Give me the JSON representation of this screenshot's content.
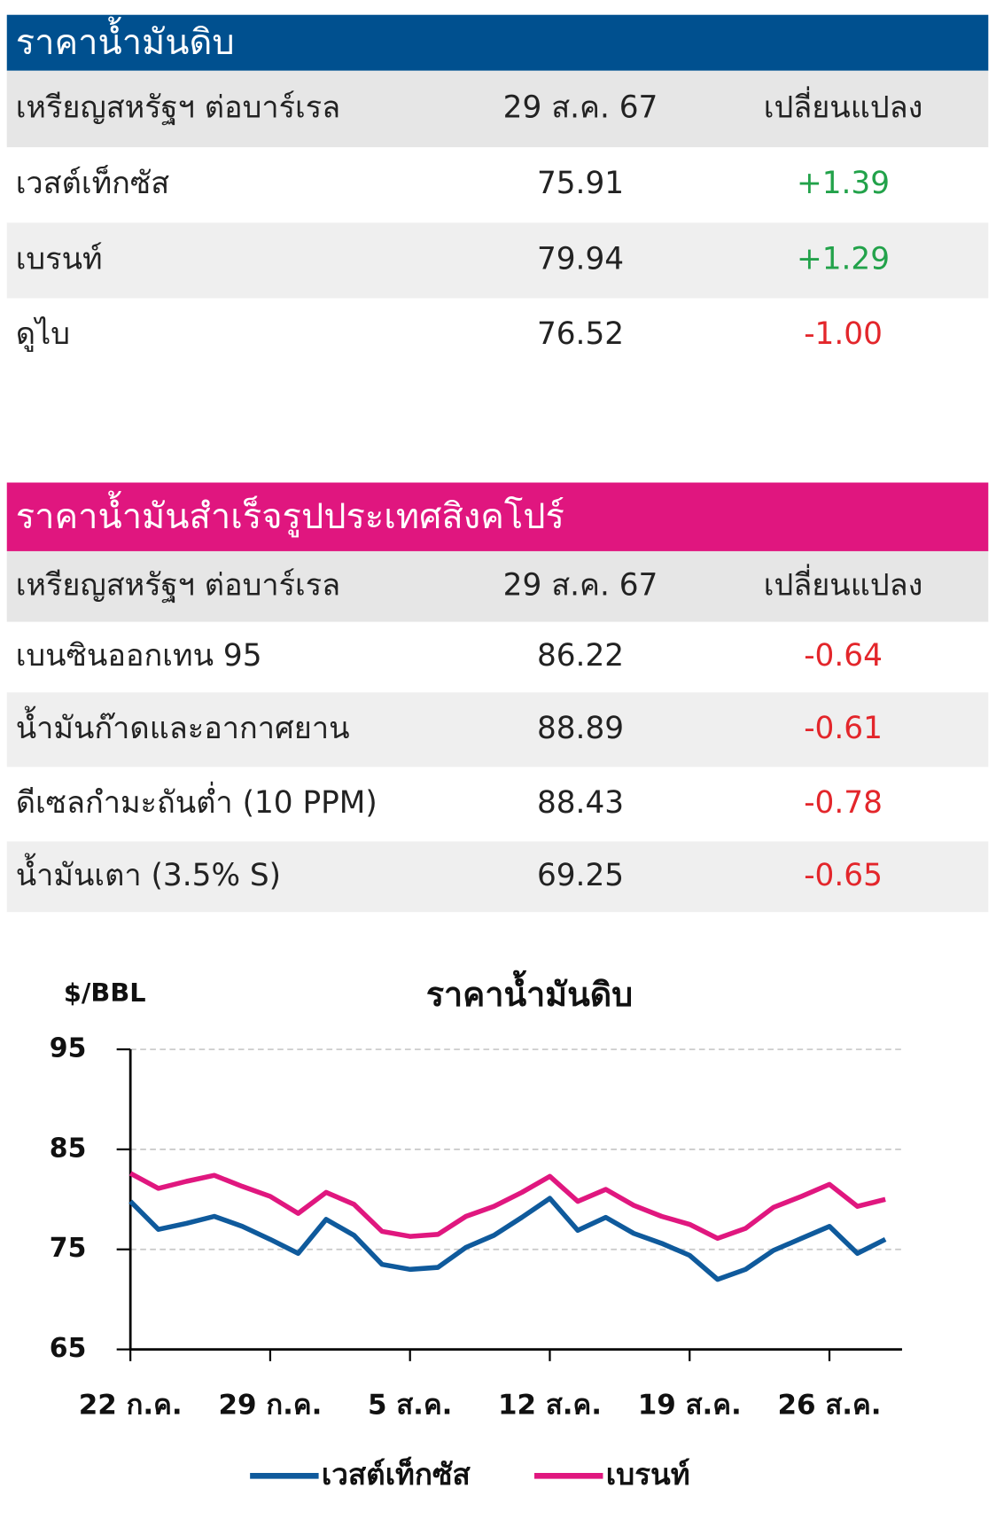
{
  "tables": [
    {
      "title": "ราคาน้ำมันดิบ",
      "header": [
        "เหรียญสหรัฐฯ ต่อบาร์เรล",
        "29 ส.ค. 67",
        "เปลี่ยนแปลง"
      ],
      "rows": [
        [
          "เวสต์เท็กซัส",
          "75.91",
          "+1.39"
        ],
        [
          "เบรนท์",
          "79.94",
          "+1.29"
        ],
        [
          "ดูไบ",
          "76.52",
          "-1.00"
        ]
      ]
    },
    {
      "title": "ราคาน้ำมันสำเร็จรูปประเทศสิงคโปร์",
      "header": [
        "เหรียญสหรัฐฯ ต่อบาร์เรล",
        "29 ส.ค. 67",
        "เปลี่ยนแปลง"
      ],
      "rows": [
        [
          "เบนซินออกเทน 95",
          "86.22",
          "-0.64"
        ],
        [
          "น้ำมันก๊าดและอากาศยาน",
          "88.89",
          "-0.61"
        ],
        [
          "ดีเซลกำมะถันต่ำ (10 PPM)",
          "88.43",
          "-0.78"
        ],
        [
          "น้ำมันเตา (3.5% S)",
          "69.25",
          "-0.65"
        ]
      ]
    }
  ],
  "chart_data": {
    "type": "line",
    "title": "ราคาน้ำมันดิบ",
    "y_label": "$/BBL",
    "categories": [
      "22 ก.ค.",
      null,
      null,
      null,
      null,
      "29 ก.ค.",
      null,
      null,
      null,
      null,
      "5 ส.ค.",
      null,
      null,
      null,
      null,
      "12 ส.ค.",
      null,
      null,
      null,
      null,
      "19 ส.ค.",
      null,
      null,
      null,
      null,
      "26 ส.ค.",
      null,
      null
    ],
    "series": [
      {
        "name": "เวสต์เท็กซัส",
        "color": "#0f5a9c",
        "values": [
          79.8,
          77.0,
          77.6,
          78.3,
          77.3,
          76.0,
          74.6,
          78.0,
          76.4,
          73.5,
          73.0,
          73.2,
          75.2,
          76.4,
          78.2,
          80.1,
          76.9,
          78.2,
          76.6,
          75.6,
          74.4,
          72.0,
          73.0,
          74.9,
          76.1,
          77.3,
          74.6,
          76.0
        ]
      },
      {
        "name": "เบรนท์",
        "color": "#e0177f",
        "values": [
          82.6,
          81.1,
          81.8,
          82.4,
          81.3,
          80.3,
          78.6,
          80.7,
          79.5,
          76.8,
          76.3,
          76.5,
          78.3,
          79.3,
          80.7,
          82.3,
          79.8,
          81.0,
          79.4,
          78.3,
          77.5,
          76.1,
          77.1,
          79.2,
          80.3,
          81.5,
          79.3,
          80.0
        ]
      }
    ],
    "ylim": [
      65,
      95
    ],
    "yticks": [
      65,
      75,
      85,
      95
    ],
    "grid": true
  }
}
